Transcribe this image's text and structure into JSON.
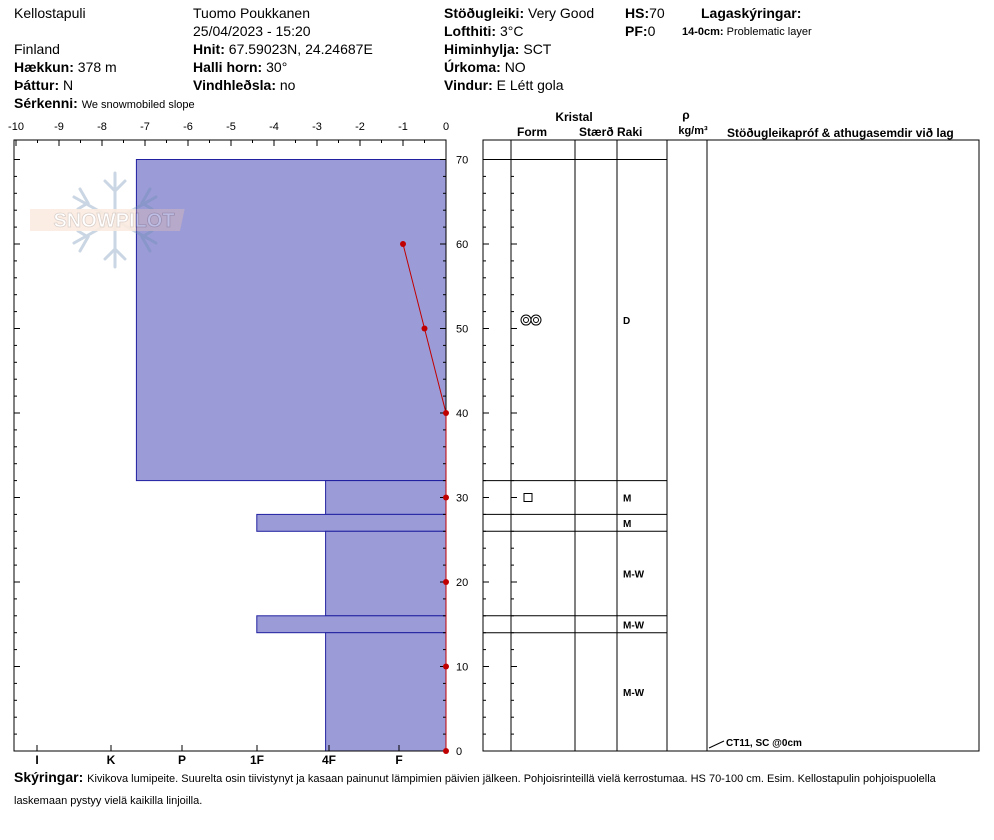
{
  "header": {
    "location": "Kellostapuli",
    "country": "Finland",
    "observer": "Tuomo Poukkanen",
    "datetime": "25/04/2023 - 15:20",
    "elevation_label": "Hækkun:",
    "elevation": "378 m",
    "aspect_label": "Þáttur:",
    "aspect": "N",
    "features_label": "Sérkenni:",
    "features": "We snowmobiled slope",
    "coords_label": "Hnit:",
    "coords": "67.59023N, 24.24687E",
    "slope_label": "Halli horn:",
    "slope": "30°",
    "wind_loading_label": "Vindhleðsla:",
    "wind_loading": "no",
    "stability_label": "Stöðugleiki:",
    "stability": "Very Good",
    "air_temp_label": "Lofthiti:",
    "air_temp": "3°C",
    "sky_label": "Himinhylja:",
    "sky": "SCT",
    "precip_label": "Úrkoma:",
    "precip": "NO",
    "wind_label": "Vindur:",
    "wind": "E Létt gola",
    "hs_label": "HS:",
    "hs": "70",
    "pf_label": "PF:",
    "pf": "0",
    "layer_notes_label": "Lagaskýringar:",
    "layer_note_depth": "14-0cm:",
    "layer_note_text": "Problematic layer"
  },
  "logo_text": "SNOWPILOT",
  "comments": {
    "label": "Skýringar:",
    "text": "Kivikova lumipeite. Suurelta osin tiivistynyt ja kasaan painunut lämpimien päivien jälkeen. Pohjoisrinteillä vielä kerrostumaa. HS 70-100 cm. Esim. Kellostapulin pohjoispuolella laskemaan pystyy vielä kaikilla linjoilla."
  },
  "columns": {
    "crystal": "Kristal",
    "form": "Form",
    "size": "Stærð",
    "moisture": "Raki",
    "density_symbol": "ρ",
    "density_unit": "kg/m³",
    "stability_tests": "Stöðugleikapróf & athugasemdir við lag"
  },
  "chart_data": {
    "type": "snow_profile",
    "temperature_axis": {
      "range": [
        -10,
        0
      ],
      "ticks": [
        -10,
        -9,
        -8,
        -7,
        -6,
        -5,
        -4,
        -3,
        -2,
        -1,
        0
      ]
    },
    "hardness_axis": {
      "labels": [
        "I",
        "K",
        "P",
        "1F",
        "4F",
        "F"
      ]
    },
    "height_axis": {
      "range": [
        0,
        70
      ],
      "ticks": [
        0,
        10,
        20,
        30,
        40,
        50,
        60,
        70
      ]
    },
    "hardness_layers": [
      {
        "top": 70,
        "bottom": 32,
        "hardness_temp_equiv": -7.2
      },
      {
        "top": 32,
        "bottom": 28,
        "hardness_temp_equiv": -2.8
      },
      {
        "top": 28,
        "bottom": 26,
        "hardness_temp_equiv": -4.4
      },
      {
        "top": 26,
        "bottom": 16,
        "hardness_temp_equiv": -2.8
      },
      {
        "top": 16,
        "bottom": 14,
        "hardness_temp_equiv": -4.4
      },
      {
        "top": 14,
        "bottom": 0,
        "hardness_temp_equiv": -2.8
      }
    ],
    "temperature_profile": [
      {
        "height": 60,
        "temp": -1.0
      },
      {
        "height": 50,
        "temp": -0.5
      },
      {
        "height": 40,
        "temp": 0.0
      },
      {
        "height": 30,
        "temp": 0.0
      },
      {
        "height": 20,
        "temp": 0.0
      },
      {
        "height": 10,
        "temp": 0.0
      },
      {
        "height": 0,
        "temp": 0.0
      }
    ],
    "layer_table": [
      {
        "top": 70,
        "bottom": 32,
        "moisture": "D",
        "form": "rounded"
      },
      {
        "top": 32,
        "bottom": 28,
        "moisture": "M",
        "form": "faceted"
      },
      {
        "top": 28,
        "bottom": 26,
        "moisture": "M",
        "form": ""
      },
      {
        "top": 26,
        "bottom": 16,
        "moisture": "M-W",
        "form": ""
      },
      {
        "top": 16,
        "bottom": 14,
        "moisture": "M-W",
        "form": ""
      },
      {
        "top": 14,
        "bottom": 0,
        "moisture": "M-W",
        "form": ""
      }
    ],
    "stability_test": {
      "height": 0,
      "text": "CT11, SC @0cm"
    },
    "colors": {
      "hardness_fill": "#9b9bd8",
      "hardness_stroke": "#2020a0",
      "temp_line": "#c00000"
    }
  }
}
